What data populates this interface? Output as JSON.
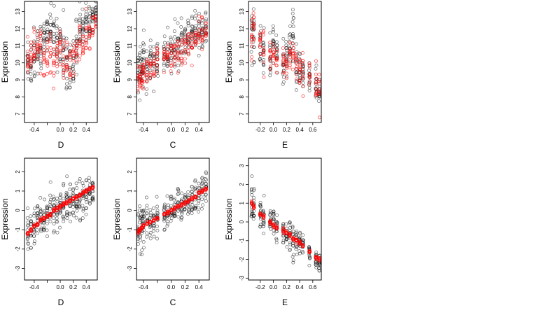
{
  "colors": {
    "observed": "#000000",
    "fitted": "#ff0000",
    "frame": "#000000"
  },
  "chart_data": [
    {
      "type": "scatter",
      "xlabel": "D",
      "ylabel": "Expression",
      "xlim": [
        -0.55,
        0.57
      ],
      "ylim": [
        6.5,
        13.6
      ],
      "xticks": [
        -0.4,
        -0.2,
        0.0,
        0.2,
        0.4
      ],
      "xtick_labels": [
        "-0.4",
        "",
        "0.0",
        "0.2",
        "0.4"
      ],
      "yticks": [
        7,
        8,
        9,
        10,
        11,
        12,
        13
      ],
      "ytick_labels": [
        "7",
        "8",
        "9",
        "10",
        "11",
        "12",
        "13"
      ],
      "x_groups": [
        -0.5,
        -0.45,
        -0.4,
        -0.35,
        -0.3,
        -0.25,
        -0.2,
        -0.15,
        -0.1,
        -0.05,
        0.0,
        0.05,
        0.1,
        0.15,
        0.2,
        0.25,
        0.3,
        0.35,
        0.4,
        0.45,
        0.5,
        0.55
      ],
      "observed_mean": [
        10.2,
        10.0,
        10.5,
        10.8,
        11.0,
        11.3,
        11.8,
        11.9,
        11.5,
        11.2,
        11.3,
        10.8,
        9.8,
        9.6,
        9.9,
        11.0,
        11.8,
        12.2,
        12.4,
        12.6,
        12.8,
        13.0
      ],
      "observed_spread": [
        1.2,
        1.5,
        1.3,
        1.2,
        1.3,
        1.1,
        1.0,
        1.0,
        1.3,
        1.2,
        1.2,
        1.5,
        1.8,
        1.6,
        1.5,
        1.3,
        1.0,
        0.9,
        0.9,
        0.8,
        0.7,
        0.6
      ],
      "fitted_mean": [
        10.3,
        10.6,
        10.9,
        11.0,
        11.2,
        10.3,
        10.4,
        10.6,
        10.1,
        10.5,
        10.9,
        10.2,
        9.9,
        9.8,
        10.1,
        10.8,
        11.3,
        11.0,
        11.4,
        11.6,
        12.0,
        12.3
      ],
      "fitted_spread": [
        1.0,
        1.0,
        0.9,
        0.9,
        0.9,
        0.9,
        1.0,
        0.9,
        0.8,
        0.9,
        0.9,
        1.0,
        1.1,
        1.0,
        0.9,
        0.9,
        0.9,
        0.8,
        0.9,
        0.8,
        0.7,
        0.6
      ]
    },
    {
      "type": "scatter",
      "xlabel": "C",
      "ylabel": "Expression",
      "xlim": [
        -0.5,
        0.55
      ],
      "ylim": [
        6.5,
        13.6
      ],
      "xticks": [
        -0.4,
        -0.2,
        0.0,
        0.2,
        0.4
      ],
      "xtick_labels": [
        "-0.4",
        "",
        "0.0",
        "0.2",
        "0.4"
      ],
      "yticks": [
        7,
        8,
        9,
        10,
        11,
        12,
        13
      ],
      "ytick_labels": [
        "7",
        "8",
        "9",
        "10",
        "11",
        "12",
        "13"
      ],
      "x_groups": [
        -0.48,
        -0.45,
        -0.42,
        -0.4,
        -0.35,
        -0.3,
        -0.25,
        -0.2,
        -0.1,
        -0.05,
        0.0,
        0.05,
        0.1,
        0.15,
        0.2,
        0.25,
        0.3,
        0.35,
        0.4,
        0.45,
        0.5
      ],
      "observed_mean": [
        9.5,
        9.3,
        9.6,
        10.0,
        9.8,
        10.0,
        10.2,
        10.4,
        10.3,
        10.5,
        10.6,
        10.8,
        10.9,
        11.0,
        11.1,
        11.3,
        11.5,
        11.6,
        11.8,
        12.0,
        11.9
      ],
      "observed_spread": [
        1.4,
        1.3,
        1.2,
        1.3,
        1.2,
        1.2,
        1.1,
        1.1,
        1.1,
        1.1,
        1.0,
        1.1,
        1.0,
        1.0,
        1.1,
        1.0,
        1.0,
        1.0,
        1.1,
        1.0,
        1.1
      ],
      "fitted_mean": [
        9.0,
        9.1,
        9.3,
        9.5,
        9.6,
        9.7,
        9.9,
        10.0,
        10.2,
        10.3,
        10.4,
        10.5,
        10.6,
        10.8,
        10.9,
        11.0,
        11.2,
        11.4,
        11.6,
        11.7,
        11.8
      ],
      "fitted_spread": [
        0.8,
        0.8,
        0.8,
        0.8,
        0.8,
        0.8,
        0.8,
        0.8,
        0.8,
        0.8,
        0.8,
        0.8,
        0.8,
        0.8,
        0.8,
        0.8,
        0.8,
        0.8,
        0.8,
        0.8,
        0.8
      ]
    },
    {
      "type": "scatter",
      "xlabel": "E",
      "ylabel": "Expression",
      "xlim": [
        -0.38,
        0.73
      ],
      "ylim": [
        6.5,
        13.6
      ],
      "xticks": [
        -0.2,
        0.0,
        0.2,
        0.4,
        0.6
      ],
      "xtick_labels": [
        "-0.2",
        "0.0",
        "0.2",
        "0.4",
        "0.6"
      ],
      "yticks": [
        7,
        8,
        9,
        10,
        11,
        12,
        13
      ],
      "ytick_labels": [
        "7",
        "8",
        "9",
        "10",
        "11",
        "12",
        "13"
      ],
      "x_groups": [
        -0.33,
        -0.3,
        -0.2,
        -0.15,
        -0.05,
        0.0,
        0.05,
        0.15,
        0.2,
        0.25,
        0.3,
        0.35,
        0.4,
        0.45,
        0.55,
        0.65,
        0.7
      ],
      "observed_mean": [
        11.3,
        11.6,
        11.0,
        10.8,
        10.6,
        11.3,
        10.4,
        10.0,
        10.3,
        10.8,
        11.8,
        10.0,
        9.6,
        9.3,
        9.0,
        8.8,
        8.4
      ],
      "observed_spread": [
        1.6,
        1.4,
        1.1,
        1.2,
        1.0,
        1.0,
        1.0,
        1.1,
        1.2,
        1.3,
        1.2,
        1.1,
        1.0,
        0.9,
        0.8,
        0.8,
        0.7
      ],
      "fitted_mean": [
        11.4,
        11.8,
        11.0,
        10.6,
        10.4,
        10.8,
        10.4,
        10.0,
        9.9,
        10.4,
        10.6,
        10.0,
        9.6,
        9.4,
        9.2,
        8.9,
        8.6
      ],
      "fitted_spread": [
        1.1,
        0.9,
        0.8,
        0.8,
        0.8,
        0.8,
        0.8,
        0.8,
        0.8,
        0.8,
        0.8,
        0.8,
        0.8,
        0.8,
        0.8,
        0.8,
        0.8
      ]
    },
    {
      "type": "scatter",
      "xlabel": "D",
      "ylabel": "Expression",
      "xlim": [
        -0.55,
        0.57
      ],
      "ylim": [
        -3.6,
        2.7
      ],
      "xticks": [
        -0.4,
        -0.2,
        0.0,
        0.2,
        0.4
      ],
      "xtick_labels": [
        "-0.4",
        "",
        "0.0",
        "0.2",
        "0.4"
      ],
      "yticks": [
        -3,
        -2,
        -1,
        0,
        1,
        2
      ],
      "ytick_labels": [
        "-3",
        "-2",
        "-1",
        "0",
        "1",
        "2"
      ],
      "x_groups": [
        -0.5,
        -0.45,
        -0.4,
        -0.35,
        -0.3,
        -0.25,
        -0.2,
        -0.15,
        -0.1,
        -0.05,
        0.0,
        0.05,
        0.1,
        0.15,
        0.2,
        0.25,
        0.3,
        0.35,
        0.4,
        0.45,
        0.5
      ],
      "observed_mean": [
        -1.3,
        -1.1,
        -0.8,
        -0.6,
        -0.5,
        -0.4,
        -0.3,
        -0.1,
        0.0,
        0.1,
        0.2,
        0.3,
        0.3,
        0.4,
        0.5,
        0.6,
        0.7,
        0.8,
        0.9,
        1.0,
        1.1
      ],
      "observed_spread": [
        0.9,
        0.8,
        0.9,
        0.8,
        0.8,
        0.8,
        0.8,
        0.8,
        0.8,
        0.8,
        0.8,
        0.8,
        0.9,
        0.9,
        0.9,
        0.8,
        0.8,
        0.8,
        0.7,
        0.7,
        0.6
      ],
      "fitted_mean": [
        -1.2,
        -1.0,
        -0.8,
        -0.7,
        -0.5,
        -0.4,
        -0.3,
        -0.2,
        0.0,
        0.1,
        0.2,
        0.3,
        0.4,
        0.5,
        0.6,
        0.7,
        0.8,
        0.9,
        1.0,
        1.1,
        1.2
      ],
      "fitted_spread": [
        0.06,
        0.06,
        0.06,
        0.06,
        0.06,
        0.06,
        0.06,
        0.06,
        0.06,
        0.06,
        0.06,
        0.06,
        0.06,
        0.06,
        0.06,
        0.06,
        0.06,
        0.06,
        0.06,
        0.06,
        0.06
      ]
    },
    {
      "type": "scatter",
      "xlabel": "C",
      "ylabel": "Expression",
      "xlim": [
        -0.5,
        0.55
      ],
      "ylim": [
        -3.6,
        2.7
      ],
      "xticks": [
        -0.4,
        -0.2,
        0.0,
        0.2,
        0.4
      ],
      "xtick_labels": [
        "-0.4",
        "",
        "0.0",
        "0.2",
        "0.4"
      ],
      "yticks": [
        -3,
        -2,
        -1,
        0,
        1,
        2
      ],
      "ytick_labels": [
        "-3",
        "-2",
        "-1",
        "0",
        "1",
        "2"
      ],
      "x_groups": [
        -0.48,
        -0.45,
        -0.42,
        -0.4,
        -0.35,
        -0.3,
        -0.25,
        -0.2,
        -0.1,
        -0.05,
        0.0,
        0.05,
        0.1,
        0.15,
        0.2,
        0.25,
        0.3,
        0.35,
        0.4,
        0.45,
        0.5
      ],
      "observed_mean": [
        -1.1,
        -1.0,
        -0.9,
        -0.8,
        -0.7,
        -0.6,
        -0.5,
        -0.4,
        -0.2,
        -0.1,
        0.0,
        0.1,
        0.2,
        0.3,
        0.4,
        0.5,
        0.6,
        0.7,
        0.9,
        1.0,
        1.1
      ],
      "observed_spread": [
        0.9,
        0.9,
        0.9,
        0.8,
        0.8,
        0.8,
        0.8,
        0.8,
        0.7,
        0.7,
        0.7,
        0.7,
        0.7,
        0.7,
        0.7,
        0.7,
        0.7,
        0.7,
        0.8,
        0.8,
        0.8
      ],
      "fitted_mean": [
        -1.1,
        -1.0,
        -0.9,
        -0.8,
        -0.7,
        -0.6,
        -0.5,
        -0.4,
        -0.2,
        -0.1,
        0.0,
        0.1,
        0.2,
        0.3,
        0.4,
        0.5,
        0.6,
        0.7,
        0.9,
        1.0,
        1.1
      ],
      "fitted_spread": [
        0.06,
        0.06,
        0.06,
        0.06,
        0.06,
        0.06,
        0.06,
        0.06,
        0.06,
        0.06,
        0.06,
        0.06,
        0.06,
        0.06,
        0.06,
        0.06,
        0.06,
        0.06,
        0.06,
        0.06,
        0.06
      ]
    },
    {
      "type": "scatter",
      "xlabel": "E",
      "ylabel": "Expression",
      "xlim": [
        -0.38,
        0.73
      ],
      "ylim": [
        -3.1,
        3.4
      ],
      "xticks": [
        -0.2,
        0.0,
        0.2,
        0.4,
        0.6
      ],
      "xtick_labels": [
        "-0.2",
        "0.0",
        "0.2",
        "0.4",
        "0.6"
      ],
      "yticks": [
        -3,
        -2,
        -1,
        0,
        1,
        2,
        3
      ],
      "ytick_labels": [
        "-3",
        "-2",
        "-1",
        "0",
        "1",
        "2",
        "3"
      ],
      "x_groups": [
        -0.33,
        -0.3,
        -0.2,
        -0.15,
        -0.05,
        0.0,
        0.05,
        0.15,
        0.2,
        0.25,
        0.3,
        0.35,
        0.4,
        0.45,
        0.55,
        0.65,
        0.7
      ],
      "observed_mean": [
        0.9,
        0.8,
        0.4,
        0.2,
        0.0,
        -0.1,
        -0.3,
        -0.5,
        -0.6,
        -0.7,
        -0.9,
        -1.0,
        -1.2,
        -1.3,
        -1.6,
        -2.0,
        -2.2
      ],
      "observed_spread": [
        1.0,
        0.9,
        0.8,
        0.8,
        0.7,
        0.7,
        0.7,
        0.7,
        0.8,
        0.8,
        0.8,
        0.7,
        0.6,
        0.6,
        0.5,
        0.5,
        0.5
      ],
      "fitted_mean": [
        1.0,
        0.8,
        0.4,
        0.3,
        0.0,
        -0.2,
        -0.3,
        -0.5,
        -0.6,
        -0.7,
        -0.9,
        -1.0,
        -1.1,
        -1.3,
        -1.6,
        -1.9,
        -2.0
      ],
      "fitted_spread": [
        0.08,
        0.08,
        0.08,
        0.08,
        0.08,
        0.08,
        0.08,
        0.08,
        0.08,
        0.08,
        0.08,
        0.08,
        0.08,
        0.08,
        0.08,
        0.08,
        0.08
      ]
    }
  ]
}
